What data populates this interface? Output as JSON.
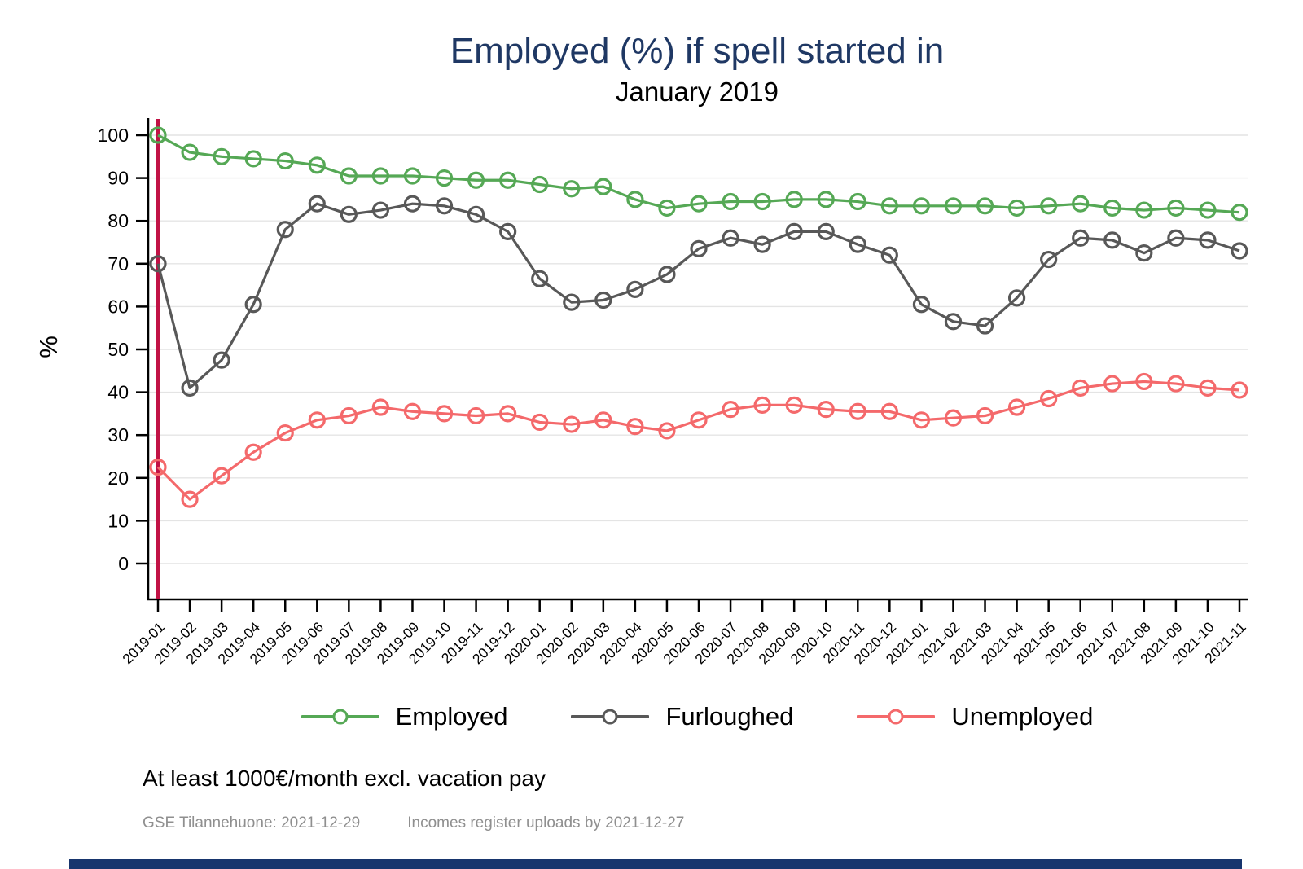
{
  "title": "Employed (%) if spell started in",
  "subtitle": "January 2019",
  "ylabel": "%",
  "note": "At least 1000€/month excl. vacation pay",
  "source_left": "GSE Tilannehuone: 2021-12-29",
  "source_right": "Incomes register uploads by 2021-12-27",
  "colors": {
    "title": "#1f3864",
    "axis": "#000000",
    "grid": "#e4e4e4",
    "start_line": "#c11245",
    "bottom_bar": "#17356d",
    "source_text": "#8f8f8f"
  },
  "chart_data": {
    "type": "line",
    "x": [
      "2019-01",
      "2019-02",
      "2019-03",
      "2019-04",
      "2019-05",
      "2019-06",
      "2019-07",
      "2019-08",
      "2019-09",
      "2019-10",
      "2019-11",
      "2019-12",
      "2020-01",
      "2020-02",
      "2020-03",
      "2020-04",
      "2020-05",
      "2020-06",
      "2020-07",
      "2020-08",
      "2020-09",
      "2020-10",
      "2020-11",
      "2020-12",
      "2021-01",
      "2021-02",
      "2021-03",
      "2021-04",
      "2021-05",
      "2021-06",
      "2021-07",
      "2021-08",
      "2021-09",
      "2021-10",
      "2021-11"
    ],
    "series": [
      {
        "name": "Employed",
        "color": "#55a855",
        "values": [
          100,
          96,
          95,
          94.5,
          94,
          93,
          90.5,
          90.5,
          90.5,
          90,
          89.5,
          89.5,
          88.5,
          87.5,
          88,
          85,
          83,
          84,
          84.5,
          84.5,
          85,
          85,
          84.5,
          83.5,
          83.5,
          83.5,
          83.5,
          83,
          83.5,
          84,
          83,
          82.5,
          83,
          82.5,
          82
        ]
      },
      {
        "name": "Furloughed",
        "color": "#585858",
        "values": [
          70,
          41,
          47.5,
          60.5,
          78,
          84,
          81.5,
          82.5,
          84,
          83.5,
          81.5,
          77.5,
          66.5,
          61,
          61.5,
          64,
          67.5,
          73.5,
          76,
          74.5,
          77.5,
          77.5,
          74.5,
          72,
          60.5,
          56.5,
          55.5,
          62,
          71,
          76,
          75.5,
          72.5,
          76,
          75.5,
          73
        ]
      },
      {
        "name": "Unemployed",
        "color": "#f4696b",
        "values": [
          22.5,
          15,
          20.5,
          26,
          30.5,
          33.5,
          34.5,
          36.5,
          35.5,
          35,
          34.5,
          35,
          33,
          32.5,
          33.5,
          32,
          31,
          33.5,
          36,
          37,
          37,
          36,
          35.5,
          35.5,
          33.5,
          34,
          34.5,
          36.5,
          38.5,
          41,
          42,
          42.5,
          42,
          41,
          40.5
        ]
      }
    ],
    "ylim": [
      0,
      100
    ],
    "yticks": [
      0,
      10,
      20,
      30,
      40,
      50,
      60,
      70,
      80,
      90,
      100
    ],
    "grid": true,
    "legend_position": "bottom",
    "vline": {
      "x": "2019-01"
    }
  }
}
